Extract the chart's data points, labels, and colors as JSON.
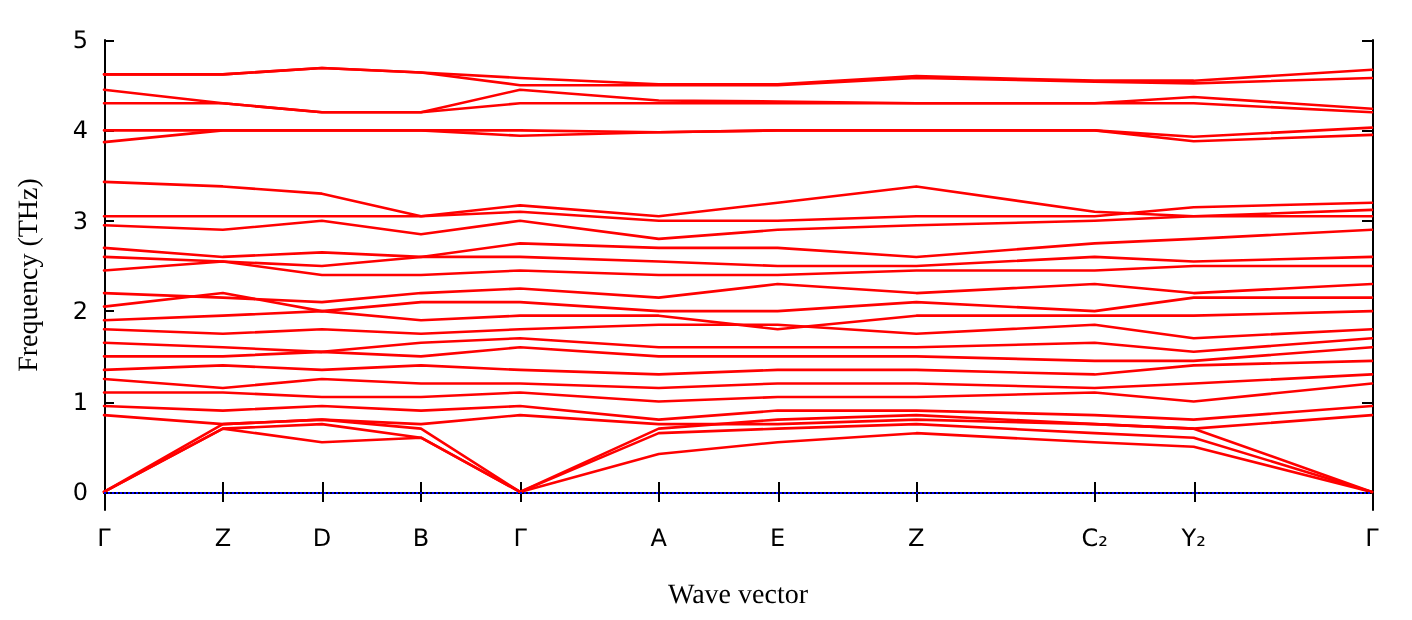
{
  "chart_data": {
    "type": "line",
    "xlabel": "Wave vector",
    "ylabel": "Frequency (THz)",
    "categories": [
      "Γ",
      null,
      null,
      null,
      null,
      null,
      "Z",
      null,
      null,
      null,
      null,
      "D",
      null,
      null,
      null,
      null,
      "B",
      null,
      null,
      null,
      null,
      "Γ",
      null,
      null,
      null,
      null,
      null,
      null,
      "A",
      null,
      null,
      null,
      null,
      null,
      "E",
      null,
      null,
      null,
      null,
      null,
      null,
      "Z",
      null,
      null,
      null,
      null,
      null,
      null,
      null,
      null,
      "C₂",
      null,
      null,
      null,
      null,
      "Y₂",
      null,
      null,
      null,
      null,
      null,
      null,
      null,
      null,
      "Γ"
    ],
    "ylim": [
      -0.2,
      5
    ],
    "yticks": [
      0,
      1,
      2,
      3,
      4,
      5
    ],
    "marker": "none",
    "line_style": "solid",
    "ref_lines": [
      {
        "axis": "y",
        "value": 0,
        "color": "#0000ff",
        "line_style": "dotted"
      }
    ],
    "series": [
      {
        "color": "#ff0000",
        "values": [
          4.62,
          null,
          null,
          null,
          null,
          null,
          4.62,
          null,
          null,
          null,
          null,
          4.69,
          null,
          null,
          null,
          null,
          4.64,
          null,
          null,
          null,
          null,
          4.58,
          null,
          null,
          null,
          null,
          null,
          null,
          4.51,
          null,
          null,
          null,
          null,
          null,
          4.51,
          null,
          null,
          null,
          null,
          null,
          null,
          4.6,
          null,
          null,
          null,
          null,
          null,
          null,
          null,
          null,
          4.55,
          null,
          null,
          null,
          null,
          4.55,
          null,
          null,
          null,
          null,
          null,
          null,
          null,
          null,
          4.67
        ]
      },
      {
        "color": "#ff0000",
        "values": [
          4.62,
          null,
          null,
          null,
          null,
          null,
          4.62,
          null,
          null,
          null,
          null,
          4.69,
          null,
          null,
          null,
          null,
          4.64,
          null,
          null,
          null,
          null,
          4.5,
          null,
          null,
          null,
          null,
          null,
          null,
          4.5,
          null,
          null,
          null,
          null,
          null,
          4.5,
          null,
          null,
          null,
          null,
          null,
          null,
          4.58,
          null,
          null,
          null,
          null,
          null,
          null,
          null,
          null,
          4.54,
          null,
          null,
          null,
          null,
          4.52,
          null,
          null,
          null,
          null,
          null,
          null,
          null,
          null,
          4.58
        ]
      },
      {
        "color": "#ff0000",
        "values": [
          4.45,
          null,
          null,
          null,
          null,
          null,
          4.3,
          null,
          null,
          null,
          null,
          4.2,
          null,
          null,
          null,
          null,
          4.2,
          null,
          null,
          null,
          null,
          4.45,
          null,
          null,
          null,
          null,
          null,
          null,
          4.33,
          null,
          null,
          null,
          null,
          null,
          4.32,
          null,
          null,
          null,
          null,
          null,
          null,
          4.3,
          null,
          null,
          null,
          null,
          null,
          null,
          null,
          null,
          4.3,
          null,
          null,
          null,
          null,
          4.37,
          null,
          null,
          null,
          null,
          null,
          null,
          null,
          null,
          4.24
        ]
      },
      {
        "color": "#ff0000",
        "values": [
          4.3,
          null,
          null,
          null,
          null,
          null,
          4.3,
          null,
          null,
          null,
          null,
          4.2,
          null,
          null,
          null,
          null,
          4.2,
          null,
          null,
          null,
          null,
          4.3,
          null,
          null,
          null,
          null,
          null,
          null,
          4.3,
          null,
          null,
          null,
          null,
          null,
          4.3,
          null,
          null,
          null,
          null,
          null,
          null,
          4.3,
          null,
          null,
          null,
          null,
          null,
          null,
          null,
          null,
          4.3,
          null,
          null,
          null,
          null,
          4.3,
          null,
          null,
          null,
          null,
          null,
          null,
          null,
          null,
          4.2
        ]
      },
      {
        "color": "#ff0000",
        "values": [
          4.0,
          null,
          null,
          null,
          null,
          null,
          4.0,
          null,
          null,
          null,
          null,
          4.0,
          null,
          null,
          null,
          null,
          4.0,
          null,
          null,
          null,
          null,
          4.0,
          null,
          null,
          null,
          null,
          null,
          null,
          3.98,
          null,
          null,
          null,
          null,
          null,
          4.0,
          null,
          null,
          null,
          null,
          null,
          null,
          4.0,
          null,
          null,
          null,
          null,
          null,
          null,
          null,
          null,
          4.0,
          null,
          null,
          null,
          null,
          3.93,
          null,
          null,
          null,
          null,
          null,
          null,
          null,
          null,
          4.03
        ]
      },
      {
        "color": "#ff0000",
        "values": [
          3.87,
          null,
          null,
          null,
          null,
          null,
          4.0,
          null,
          null,
          null,
          null,
          4.0,
          null,
          null,
          null,
          null,
          4.0,
          null,
          null,
          null,
          null,
          3.94,
          null,
          null,
          null,
          null,
          null,
          null,
          3.98,
          null,
          null,
          null,
          null,
          null,
          4.0,
          null,
          null,
          null,
          null,
          null,
          null,
          4.0,
          null,
          null,
          null,
          null,
          null,
          null,
          null,
          null,
          4.0,
          null,
          null,
          null,
          null,
          3.88,
          null,
          null,
          null,
          null,
          null,
          null,
          null,
          null,
          3.95
        ]
      },
      {
        "color": "#ff0000",
        "values": [
          3.43,
          null,
          null,
          null,
          null,
          null,
          3.38,
          null,
          null,
          null,
          null,
          3.3,
          null,
          null,
          null,
          null,
          3.05,
          null,
          null,
          null,
          null,
          3.17,
          null,
          null,
          null,
          null,
          null,
          null,
          3.05,
          null,
          null,
          null,
          null,
          null,
          3.2,
          null,
          null,
          null,
          null,
          null,
          null,
          3.38,
          null,
          null,
          null,
          null,
          null,
          null,
          null,
          null,
          3.1,
          null,
          null,
          null,
          null,
          3.05,
          null,
          null,
          null,
          null,
          null,
          null,
          null,
          null,
          3.12
        ]
      },
      {
        "color": "#ff0000",
        "values": [
          3.05,
          null,
          null,
          null,
          null,
          null,
          3.05,
          null,
          null,
          null,
          null,
          3.05,
          null,
          null,
          null,
          null,
          3.05,
          null,
          null,
          null,
          null,
          3.1,
          null,
          null,
          null,
          null,
          null,
          null,
          3.0,
          null,
          null,
          null,
          null,
          null,
          3.0,
          null,
          null,
          null,
          null,
          null,
          null,
          3.05,
          null,
          null,
          null,
          null,
          null,
          null,
          null,
          null,
          3.05,
          null,
          null,
          null,
          null,
          3.15,
          null,
          null,
          null,
          null,
          null,
          null,
          null,
          null,
          3.2
        ]
      },
      {
        "color": "#ff0000",
        "values": [
          2.95,
          null,
          null,
          null,
          null,
          null,
          2.9,
          null,
          null,
          null,
          null,
          3.0,
          null,
          null,
          null,
          null,
          2.85,
          null,
          null,
          null,
          null,
          3.0,
          null,
          null,
          null,
          null,
          null,
          null,
          2.8,
          null,
          null,
          null,
          null,
          null,
          2.9,
          null,
          null,
          null,
          null,
          null,
          null,
          2.95,
          null,
          null,
          null,
          null,
          null,
          null,
          null,
          null,
          3.0,
          null,
          null,
          null,
          null,
          3.05,
          null,
          null,
          null,
          null,
          null,
          null,
          null,
          null,
          3.05
        ]
      },
      {
        "color": "#ff0000",
        "values": [
          2.7,
          null,
          null,
          null,
          null,
          null,
          2.6,
          null,
          null,
          null,
          null,
          2.65,
          null,
          null,
          null,
          null,
          2.6,
          null,
          null,
          null,
          null,
          2.75,
          null,
          null,
          null,
          null,
          null,
          null,
          2.7,
          null,
          null,
          null,
          null,
          null,
          2.7,
          null,
          null,
          null,
          null,
          null,
          null,
          2.6,
          null,
          null,
          null,
          null,
          null,
          null,
          null,
          null,
          2.75,
          null,
          null,
          null,
          null,
          2.8,
          null,
          null,
          null,
          null,
          null,
          null,
          null,
          null,
          2.9
        ]
      },
      {
        "color": "#ff0000",
        "values": [
          2.6,
          null,
          null,
          null,
          null,
          null,
          2.55,
          null,
          null,
          null,
          null,
          2.5,
          null,
          null,
          null,
          null,
          2.6,
          null,
          null,
          null,
          null,
          2.6,
          null,
          null,
          null,
          null,
          null,
          null,
          2.55,
          null,
          null,
          null,
          null,
          null,
          2.5,
          null,
          null,
          null,
          null,
          null,
          null,
          2.5,
          null,
          null,
          null,
          null,
          null,
          null,
          null,
          null,
          2.6,
          null,
          null,
          null,
          null,
          2.55,
          null,
          null,
          null,
          null,
          null,
          null,
          null,
          null,
          2.6
        ]
      },
      {
        "color": "#ff0000",
        "values": [
          2.45,
          null,
          null,
          null,
          null,
          null,
          2.55,
          null,
          null,
          null,
          null,
          2.4,
          null,
          null,
          null,
          null,
          2.4,
          null,
          null,
          null,
          null,
          2.45,
          null,
          null,
          null,
          null,
          null,
          null,
          2.4,
          null,
          null,
          null,
          null,
          null,
          2.4,
          null,
          null,
          null,
          null,
          null,
          null,
          2.45,
          null,
          null,
          null,
          null,
          null,
          null,
          null,
          null,
          2.45,
          null,
          null,
          null,
          null,
          2.5,
          null,
          null,
          null,
          null,
          null,
          null,
          null,
          null,
          2.5
        ]
      },
      {
        "color": "#ff0000",
        "values": [
          2.2,
          null,
          null,
          null,
          null,
          null,
          2.15,
          null,
          null,
          null,
          null,
          2.1,
          null,
          null,
          null,
          null,
          2.2,
          null,
          null,
          null,
          null,
          2.25,
          null,
          null,
          null,
          null,
          null,
          null,
          2.15,
          null,
          null,
          null,
          null,
          null,
          2.3,
          null,
          null,
          null,
          null,
          null,
          null,
          2.2,
          null,
          null,
          null,
          null,
          null,
          null,
          null,
          null,
          2.3,
          null,
          null,
          null,
          null,
          2.2,
          null,
          null,
          null,
          null,
          null,
          null,
          null,
          null,
          2.3
        ]
      },
      {
        "color": "#ff0000",
        "values": [
          2.05,
          null,
          null,
          null,
          null,
          null,
          2.2,
          null,
          null,
          null,
          null,
          2.0,
          null,
          null,
          null,
          null,
          2.1,
          null,
          null,
          null,
          null,
          2.1,
          null,
          null,
          null,
          null,
          null,
          null,
          2.0,
          null,
          null,
          null,
          null,
          null,
          2.0,
          null,
          null,
          null,
          null,
          null,
          null,
          2.1,
          null,
          null,
          null,
          null,
          null,
          null,
          null,
          null,
          2.0,
          null,
          null,
          null,
          null,
          2.15,
          null,
          null,
          null,
          null,
          null,
          null,
          null,
          null,
          2.15
        ]
      },
      {
        "color": "#ff0000",
        "values": [
          1.9,
          null,
          null,
          null,
          null,
          null,
          1.95,
          null,
          null,
          null,
          null,
          2.0,
          null,
          null,
          null,
          null,
          1.9,
          null,
          null,
          null,
          null,
          1.95,
          null,
          null,
          null,
          null,
          null,
          null,
          1.95,
          null,
          null,
          null,
          null,
          null,
          1.8,
          null,
          null,
          null,
          null,
          null,
          null,
          1.95,
          null,
          null,
          null,
          null,
          null,
          null,
          null,
          null,
          1.95,
          null,
          null,
          null,
          null,
          1.95,
          null,
          null,
          null,
          null,
          null,
          null,
          null,
          null,
          2.0
        ]
      },
      {
        "color": "#ff0000",
        "values": [
          1.8,
          null,
          null,
          null,
          null,
          null,
          1.75,
          null,
          null,
          null,
          null,
          1.8,
          null,
          null,
          null,
          null,
          1.75,
          null,
          null,
          null,
          null,
          1.8,
          null,
          null,
          null,
          null,
          null,
          null,
          1.85,
          null,
          null,
          null,
          null,
          null,
          1.85,
          null,
          null,
          null,
          null,
          null,
          null,
          1.75,
          null,
          null,
          null,
          null,
          null,
          null,
          null,
          null,
          1.85,
          null,
          null,
          null,
          null,
          1.7,
          null,
          null,
          null,
          null,
          null,
          null,
          null,
          null,
          1.8
        ]
      },
      {
        "color": "#ff0000",
        "values": [
          1.65,
          null,
          null,
          null,
          null,
          null,
          1.6,
          null,
          null,
          null,
          null,
          1.55,
          null,
          null,
          null,
          null,
          1.65,
          null,
          null,
          null,
          null,
          1.7,
          null,
          null,
          null,
          null,
          null,
          null,
          1.6,
          null,
          null,
          null,
          null,
          null,
          1.6,
          null,
          null,
          null,
          null,
          null,
          null,
          1.6,
          null,
          null,
          null,
          null,
          null,
          null,
          null,
          null,
          1.65,
          null,
          null,
          null,
          null,
          1.55,
          null,
          null,
          null,
          null,
          null,
          null,
          null,
          null,
          1.7
        ]
      },
      {
        "color": "#ff0000",
        "values": [
          1.5,
          null,
          null,
          null,
          null,
          null,
          1.5,
          null,
          null,
          null,
          null,
          1.55,
          null,
          null,
          null,
          null,
          1.5,
          null,
          null,
          null,
          null,
          1.6,
          null,
          null,
          null,
          null,
          null,
          null,
          1.5,
          null,
          null,
          null,
          null,
          null,
          1.5,
          null,
          null,
          null,
          null,
          null,
          null,
          1.5,
          null,
          null,
          null,
          null,
          null,
          null,
          null,
          null,
          1.45,
          null,
          null,
          null,
          null,
          1.45,
          null,
          null,
          null,
          null,
          null,
          null,
          null,
          null,
          1.6
        ]
      },
      {
        "color": "#ff0000",
        "values": [
          1.35,
          null,
          null,
          null,
          null,
          null,
          1.4,
          null,
          null,
          null,
          null,
          1.35,
          null,
          null,
          null,
          null,
          1.4,
          null,
          null,
          null,
          null,
          1.35,
          null,
          null,
          null,
          null,
          null,
          null,
          1.3,
          null,
          null,
          null,
          null,
          null,
          1.35,
          null,
          null,
          null,
          null,
          null,
          null,
          1.35,
          null,
          null,
          null,
          null,
          null,
          null,
          null,
          null,
          1.3,
          null,
          null,
          null,
          null,
          1.4,
          null,
          null,
          null,
          null,
          null,
          null,
          null,
          null,
          1.45
        ]
      },
      {
        "color": "#ff0000",
        "values": [
          1.25,
          null,
          null,
          null,
          null,
          null,
          1.15,
          null,
          null,
          null,
          null,
          1.25,
          null,
          null,
          null,
          null,
          1.2,
          null,
          null,
          null,
          null,
          1.2,
          null,
          null,
          null,
          null,
          null,
          null,
          1.15,
          null,
          null,
          null,
          null,
          null,
          1.2,
          null,
          null,
          null,
          null,
          null,
          null,
          1.2,
          null,
          null,
          null,
          null,
          null,
          null,
          null,
          null,
          1.15,
          null,
          null,
          null,
          null,
          1.2,
          null,
          null,
          null,
          null,
          null,
          null,
          null,
          null,
          1.3
        ]
      },
      {
        "color": "#ff0000",
        "values": [
          1.1,
          null,
          null,
          null,
          null,
          null,
          1.1,
          null,
          null,
          null,
          null,
          1.05,
          null,
          null,
          null,
          null,
          1.05,
          null,
          null,
          null,
          null,
          1.1,
          null,
          null,
          null,
          null,
          null,
          null,
          1.0,
          null,
          null,
          null,
          null,
          null,
          1.05,
          null,
          null,
          null,
          null,
          null,
          null,
          1.05,
          null,
          null,
          null,
          null,
          null,
          null,
          null,
          null,
          1.1,
          null,
          null,
          null,
          null,
          1.0,
          null,
          null,
          null,
          null,
          null,
          null,
          null,
          null,
          1.2
        ]
      },
      {
        "color": "#ff0000",
        "values": [
          0.95,
          null,
          null,
          null,
          null,
          null,
          0.9,
          null,
          null,
          null,
          null,
          0.95,
          null,
          null,
          null,
          null,
          0.9,
          null,
          null,
          null,
          null,
          0.95,
          null,
          null,
          null,
          null,
          null,
          null,
          0.8,
          null,
          null,
          null,
          null,
          null,
          0.9,
          null,
          null,
          null,
          null,
          null,
          null,
          0.9,
          null,
          null,
          null,
          null,
          null,
          null,
          null,
          null,
          0.85,
          null,
          null,
          null,
          null,
          0.8,
          null,
          null,
          null,
          null,
          null,
          null,
          null,
          null,
          0.95
        ]
      },
      {
        "color": "#ff0000",
        "values": [
          0.85,
          null,
          null,
          null,
          null,
          null,
          0.75,
          null,
          null,
          null,
          null,
          0.8,
          null,
          null,
          null,
          null,
          0.75,
          null,
          null,
          null,
          null,
          0.85,
          null,
          null,
          null,
          null,
          null,
          null,
          0.75,
          null,
          null,
          null,
          null,
          null,
          0.75,
          null,
          null,
          null,
          null,
          null,
          null,
          0.8,
          null,
          null,
          null,
          null,
          null,
          null,
          null,
          null,
          0.75,
          null,
          null,
          null,
          null,
          0.7,
          null,
          null,
          null,
          null,
          null,
          null,
          null,
          null,
          0.85
        ]
      },
      {
        "color": "#ff0000",
        "values": [
          0,
          null,
          null,
          null,
          null,
          null,
          0.7,
          null,
          null,
          null,
          null,
          0.55,
          null,
          null,
          null,
          null,
          0.6,
          null,
          null,
          null,
          null,
          0,
          null,
          null,
          null,
          null,
          null,
          null,
          0.42,
          null,
          null,
          null,
          null,
          null,
          0.55,
          null,
          null,
          null,
          null,
          null,
          null,
          0.65,
          null,
          null,
          null,
          null,
          null,
          null,
          null,
          null,
          0.55,
          null,
          null,
          null,
          null,
          0.5,
          null,
          null,
          null,
          null,
          null,
          null,
          null,
          null,
          0
        ]
      },
      {
        "color": "#ff0000",
        "values": [
          0,
          null,
          null,
          null,
          null,
          null,
          0.7,
          null,
          null,
          null,
          null,
          0.75,
          null,
          null,
          null,
          null,
          0.6,
          null,
          null,
          null,
          null,
          0,
          null,
          null,
          null,
          null,
          null,
          null,
          0.65,
          null,
          null,
          null,
          null,
          null,
          0.7,
          null,
          null,
          null,
          null,
          null,
          null,
          0.75,
          null,
          null,
          null,
          null,
          null,
          null,
          null,
          null,
          0.65,
          null,
          null,
          null,
          null,
          0.6,
          null,
          null,
          null,
          null,
          null,
          null,
          null,
          null,
          0
        ]
      },
      {
        "color": "#ff0000",
        "values": [
          0,
          null,
          null,
          null,
          null,
          null,
          0.75,
          null,
          null,
          null,
          null,
          0.8,
          null,
          null,
          null,
          null,
          0.7,
          null,
          null,
          null,
          null,
          0,
          null,
          null,
          null,
          null,
          null,
          null,
          0.7,
          null,
          null,
          null,
          null,
          null,
          0.8,
          null,
          null,
          null,
          null,
          null,
          null,
          0.85,
          null,
          null,
          null,
          null,
          null,
          null,
          null,
          null,
          0.75,
          null,
          null,
          null,
          null,
          0.7,
          null,
          null,
          null,
          null,
          null,
          null,
          null,
          null,
          0
        ]
      }
    ]
  }
}
